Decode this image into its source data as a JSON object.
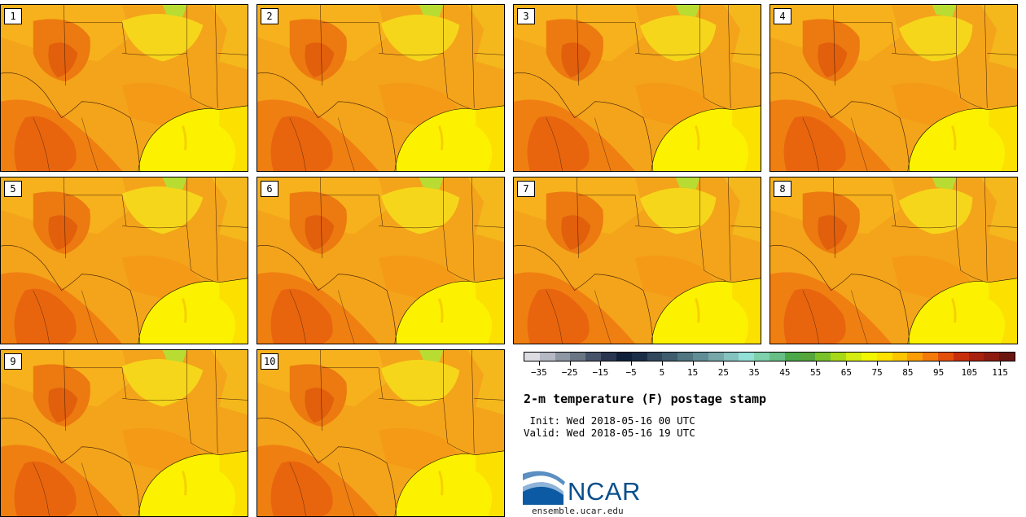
{
  "panels": [
    "1",
    "2",
    "3",
    "4",
    "5",
    "6",
    "7",
    "8",
    "9",
    "10"
  ],
  "colorbar": {
    "colors": [
      "#dcdce2",
      "#b5b9c4",
      "#8f97a4",
      "#6b7685",
      "#47536a",
      "#2a3650",
      "#10203a",
      "#1b2e48",
      "#30475c",
      "#3f5d6e",
      "#507682",
      "#618e96",
      "#76a8aa",
      "#85c3c0",
      "#93e0d8",
      "#7fd1ab",
      "#67bf86",
      "#4aa848",
      "#55a63c",
      "#79c22a",
      "#a8d918",
      "#d4ec0f",
      "#f2f600",
      "#fde200",
      "#fbc500",
      "#f99e06",
      "#f47a0b",
      "#e2500c",
      "#c8300d",
      "#a8200e",
      "#8e1b10",
      "#6b1510"
    ],
    "ticks": [
      "−35",
      "−25",
      "−15",
      "−5",
      "5",
      "15",
      "25",
      "35",
      "45",
      "55",
      "65",
      "75",
      "85",
      "95",
      "105",
      "115"
    ],
    "range": [
      -40,
      120
    ]
  },
  "title": "2-m temperature (F) postage stamp",
  "init": " Init: Wed 2018-05-16 00 UTC",
  "valid": "Valid: Wed 2018-05-16 19 UTC",
  "logo": {
    "text": "NCAR",
    "brand_color": "#0b4f8c"
  },
  "site": "ensemble.ucar.edu"
}
